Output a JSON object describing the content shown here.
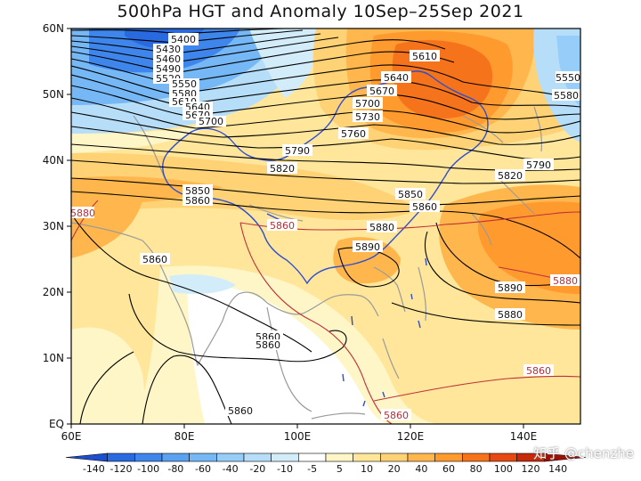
{
  "title": "500hPa HGT and Anomaly 10Sep–25Sep 2021",
  "watermark": "知乎 @chenzhe",
  "axes": {
    "x_ticks": [
      "60E",
      "80E",
      "100E",
      "120E",
      "140E"
    ],
    "y_ticks": [
      "60N",
      "50N",
      "40N",
      "30N",
      "20N",
      "10N",
      "EQ"
    ]
  },
  "contour_labels": {
    "black": [
      "5400",
      "5430",
      "5460",
      "5490",
      "5520",
      "5550",
      "5580",
      "5610",
      "5640",
      "5670",
      "5700",
      "5610",
      "5640",
      "5670",
      "5700",
      "5730",
      "5760",
      "5790",
      "5820",
      "5850",
      "5860",
      "5850",
      "5860",
      "5880",
      "5890",
      "5860",
      "5890",
      "5880",
      "5860",
      "5860",
      "5860",
      "5790",
      "5820",
      "5550",
      "5580"
    ],
    "red": [
      "5860",
      "5880",
      "5860",
      "5860",
      "5880"
    ]
  },
  "colorbar": {
    "labels": [
      "-140",
      "-120",
      "-100",
      "-80",
      "-60",
      "-40",
      "-20",
      "-10",
      "-5",
      "5",
      "10",
      "20",
      "40",
      "60",
      "80",
      "100",
      "120",
      "140"
    ],
    "colors": [
      "#1a4fcf",
      "#2a6ae0",
      "#3f86ec",
      "#5aa1f2",
      "#76b8f6",
      "#96cdf9",
      "#b6def9",
      "#d2ecfa",
      "#ffffff",
      "#fff6c8",
      "#ffe699",
      "#ffd275",
      "#ffb74d",
      "#ff9a2e",
      "#f5731b",
      "#e64a10",
      "#c72a0a",
      "#a00f05"
    ]
  }
}
